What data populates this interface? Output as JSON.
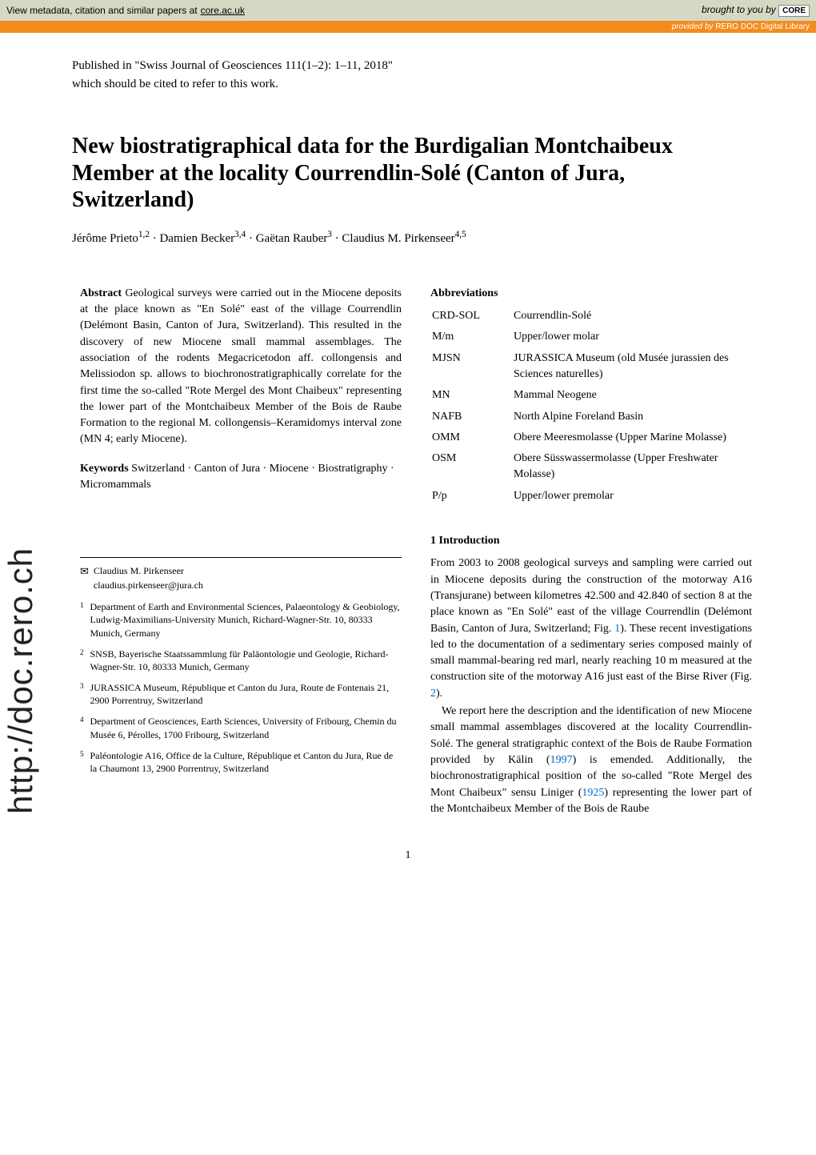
{
  "topbar": {
    "left_text": "View metadata, citation and similar papers at",
    "left_link": "core.ac.uk",
    "right_prefix": "brought to you by",
    "core_label": "CORE"
  },
  "provided": {
    "prefix": "provided by",
    "source": "RERO DOC Digital Library"
  },
  "citation": {
    "line1": "Published in \"Swiss Journal of Geosciences 111(1–2): 1–11, 2018\"",
    "line2": "which should be cited to refer to this work."
  },
  "title": "New biostratigraphical data for the Burdigalian Montchaibeux Member at the locality Courrendlin-Solé (Canton of Jura, Switzerland)",
  "authors_html": "Jérôme Prieto<sup>1,2</sup> · Damien Becker<sup>3,4</sup> · Gaëtan Rauber<sup>3</sup> · Claudius M. Pirkenseer<sup>4,5</sup>",
  "sidebar": "http://doc.rero.ch",
  "abstract": {
    "label": "Abstract",
    "text": " Geological surveys were carried out in the Miocene deposits at the place known as \"En Solé\" east of the village Courrendlin (Delémont Basin, Canton of Jura, Switzerland). This resulted in the discovery of new Miocene small mammal assemblages. The association of the rodents Megacricetodon aff. collongensis and Melissiodon sp. allows to biochronostratigraphically correlate for the first time the so-called \"Rote Mergel des Mont Chaibeux\" representing the lower part of the Montchaibeux Member of the Bois de Raube Formation to the regional M. collongensis–Keramidomys interval zone (MN 4; early Miocene)."
  },
  "keywords": {
    "label": "Keywords",
    "text": " Switzerland · Canton of Jura · Miocene · Biostratigraphy · Micromammals"
  },
  "abbreviations": {
    "label": "Abbreviations",
    "items": [
      {
        "k": "CRD-SOL",
        "v": "Courrendlin-Solé"
      },
      {
        "k": "M/m",
        "v": "Upper/lower molar"
      },
      {
        "k": "MJSN",
        "v": "JURASSICA Museum (old Musée jurassien des Sciences naturelles)"
      },
      {
        "k": "MN",
        "v": "Mammal Neogene"
      },
      {
        "k": "NAFB",
        "v": "North Alpine Foreland Basin"
      },
      {
        "k": "OMM",
        "v": "Obere Meeresmolasse (Upper Marine Molasse)"
      },
      {
        "k": "OSM",
        "v": "Obere Süsswassermolasse (Upper Freshwater Molasse)"
      },
      {
        "k": "P/p",
        "v": "Upper/lower premolar"
      }
    ]
  },
  "intro": {
    "heading": "1 Introduction",
    "p1": "From 2003 to 2008 geological surveys and sampling were carried out in Miocene deposits during the construction of the motorway A16 (Transjurane) between kilometres 42.500 and 42.840 of section 8 at the place known as \"En Solé\" east of the village Courrendlin (Delémont Basin, Canton of Jura, Switzerland; Fig. 1). These recent investigations led to the documentation of a sedimentary series composed mainly of small mammal-bearing red marl, nearly reaching 10 m measured at the construction site of the motorway A16 just east of the Birse River (Fig. 2).",
    "p2": "We report here the description and the identification of new Miocene small mammal assemblages discovered at the locality Courrendlin-Solé. The general stratigraphic context of the Bois de Raube Formation provided by Kälin (1997) is emended. Additionally, the biochronostratigraphical position of the so-called \"Rote Mergel des Mont Chaibeux\" sensu Liniger (1925) representing the lower part of the Montchaibeux Member of the Bois de Raube"
  },
  "correspondence": {
    "name": "Claudius M. Pirkenseer",
    "email": "claudius.pirkenseer@jura.ch"
  },
  "affiliations": [
    {
      "n": "1",
      "t": "Department of Earth and Environmental Sciences, Palaeontology & Geobiology, Ludwig-Maximilians-University Munich, Richard-Wagner-Str. 10, 80333 Munich, Germany"
    },
    {
      "n": "2",
      "t": "SNSB, Bayerische Staatssammlung für Paläontologie und Geologie, Richard-Wagner-Str. 10, 80333 Munich, Germany"
    },
    {
      "n": "3",
      "t": "JURASSICA Museum, République et Canton du Jura, Route de Fontenais 21, 2900 Porrentruy, Switzerland"
    },
    {
      "n": "4",
      "t": "Department of Geosciences, Earth Sciences, University of Fribourg, Chemin du Musée 6, Pérolles, 1700 Fribourg, Switzerland"
    },
    {
      "n": "5",
      "t": "Paléontologie A16, Office de la Culture, République et Canton du Jura, Rue de la Chaumont 13, 2900 Porrentruy, Switzerland"
    }
  ],
  "page_number": "1",
  "colors": {
    "topbar_bg": "#d5d9c4",
    "provided_bg": "#f28c1e",
    "link": "#0066cc"
  }
}
